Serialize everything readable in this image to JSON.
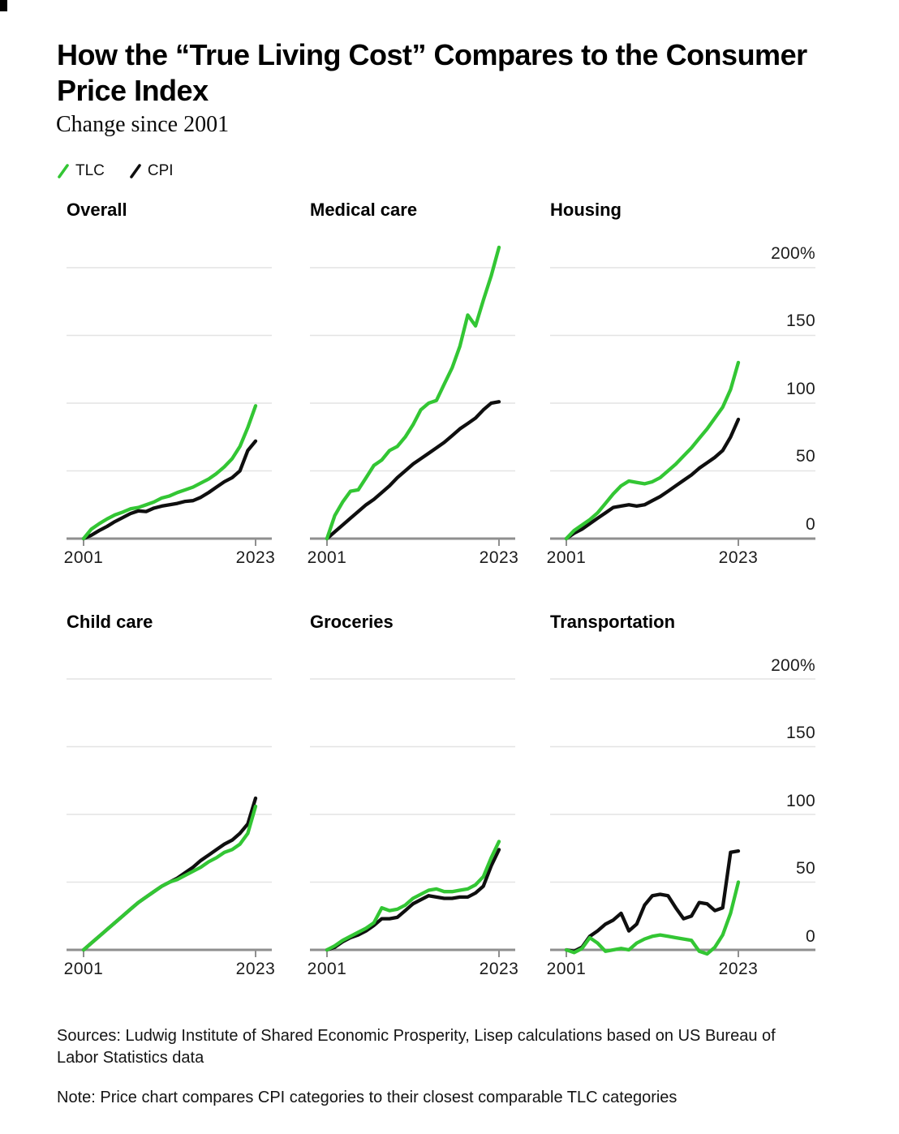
{
  "page": {
    "title": "How the “True Living Cost” Compares to the Consumer Price Index",
    "subtitle": "Change since 2001",
    "source_note": "Sources: Ludwig Institute of Shared Economic Prosperity, Lisep calculations based on US Bureau of Labor Statistics data",
    "footnote": "Note: Price chart compares CPI categories to their closest comparable TLC categories"
  },
  "legend": {
    "items": [
      {
        "label": "TLC",
        "color": "#33c634"
      },
      {
        "label": "CPI",
        "color": "#0f0f0f"
      }
    ]
  },
  "axis": {
    "y_tick_labels": [
      "200%",
      "150",
      "100",
      "50",
      "0"
    ],
    "y_gridline_values": [
      200,
      150,
      100,
      50,
      0
    ],
    "x_tick_labels": [
      "2001",
      "2023"
    ]
  },
  "colors": {
    "tlc": "#33c634",
    "cpi": "#0f0f0f",
    "gridline": "#e4e4e4",
    "axis_line": "#8f8f8f",
    "text": "#000000"
  },
  "chart_data": [
    {
      "type": "line",
      "title": "Overall",
      "x_tick_labels": [
        "2001",
        "2023"
      ],
      "ylim": [
        -5,
        215
      ],
      "x": [
        2001,
        2002,
        2003,
        2004,
        2005,
        2006,
        2007,
        2008,
        2009,
        2010,
        2011,
        2012,
        2013,
        2014,
        2015,
        2016,
        2017,
        2018,
        2019,
        2020,
        2021,
        2022,
        2023
      ],
      "series": [
        {
          "name": "TLC",
          "values": [
            0,
            7,
            11,
            14.5,
            17.5,
            19.5,
            22,
            23,
            25,
            27,
            30,
            31.5,
            34,
            36,
            38,
            41,
            44,
            48,
            53,
            59,
            68,
            82,
            98
          ]
        },
        {
          "name": "CPI",
          "values": [
            0,
            2.5,
            6,
            9,
            12.5,
            15.5,
            18.5,
            20.5,
            20,
            22.5,
            24,
            25,
            26,
            27.5,
            28,
            30.5,
            34,
            38,
            42,
            45,
            50,
            65,
            72
          ]
        }
      ]
    },
    {
      "type": "line",
      "title": "Medical care",
      "x_tick_labels": [
        "2001",
        "2023"
      ],
      "ylim": [
        -5,
        215
      ],
      "x": [
        2001,
        2002,
        2003,
        2004,
        2005,
        2006,
        2007,
        2008,
        2009,
        2010,
        2011,
        2012,
        2013,
        2014,
        2015,
        2016,
        2017,
        2018,
        2019,
        2020,
        2021,
        2022,
        2023
      ],
      "series": [
        {
          "name": "TLC",
          "values": [
            0,
            17,
            27,
            35,
            36,
            45,
            54,
            58,
            65,
            68,
            75,
            84,
            95,
            100,
            102,
            114,
            126,
            142,
            165,
            157,
            176,
            194,
            215
          ]
        },
        {
          "name": "CPI",
          "values": [
            0,
            5,
            10,
            15,
            20,
            25,
            29,
            34,
            39,
            45,
            50,
            55,
            59,
            63,
            67,
            71,
            76,
            81,
            85,
            89,
            95,
            100,
            101
          ]
        }
      ]
    },
    {
      "type": "line",
      "title": "Housing",
      "x_tick_labels": [
        "2001",
        "2023"
      ],
      "ylim": [
        -5,
        215
      ],
      "x": [
        2001,
        2002,
        2003,
        2004,
        2005,
        2006,
        2007,
        2008,
        2009,
        2010,
        2011,
        2012,
        2013,
        2014,
        2015,
        2016,
        2017,
        2018,
        2019,
        2020,
        2021,
        2022,
        2023
      ],
      "series": [
        {
          "name": "TLC",
          "values": [
            0,
            6,
            10,
            14,
            19,
            26,
            33,
            39,
            42.5,
            41.5,
            40.5,
            42,
            45,
            50,
            55,
            61,
            67,
            74,
            81,
            89,
            97,
            110,
            130
          ]
        },
        {
          "name": "CPI",
          "values": [
            0,
            4,
            7,
            11,
            15,
            19,
            23,
            24,
            25,
            24,
            25,
            28,
            31,
            35,
            39,
            43,
            47,
            52,
            56,
            60,
            65,
            75,
            88
          ]
        }
      ]
    },
    {
      "type": "line",
      "title": "Child care",
      "x_tick_labels": [
        "2001",
        "2023"
      ],
      "ylim": [
        -5,
        215
      ],
      "x": [
        2001,
        2002,
        2003,
        2004,
        2005,
        2006,
        2007,
        2008,
        2009,
        2010,
        2011,
        2012,
        2013,
        2014,
        2015,
        2016,
        2017,
        2018,
        2019,
        2020,
        2021,
        2022,
        2023
      ],
      "series": [
        {
          "name": "TLC",
          "values": [
            0,
            5,
            10,
            15,
            20,
            25,
            30,
            35,
            39,
            43,
            47,
            50,
            52,
            55,
            58,
            61,
            65,
            68,
            72,
            74,
            78,
            86,
            106
          ]
        },
        {
          "name": "CPI",
          "values": [
            0,
            5,
            10,
            15,
            20,
            25,
            30,
            35,
            39,
            43,
            47,
            50,
            53,
            57,
            61,
            66,
            70,
            74,
            78,
            81,
            86,
            93,
            112
          ]
        }
      ]
    },
    {
      "type": "line",
      "title": "Groceries",
      "x_tick_labels": [
        "2001",
        "2023"
      ],
      "ylim": [
        -5,
        215
      ],
      "x": [
        2001,
        2002,
        2003,
        2004,
        2005,
        2006,
        2007,
        2008,
        2009,
        2010,
        2011,
        2012,
        2013,
        2014,
        2015,
        2016,
        2017,
        2018,
        2019,
        2020,
        2021,
        2022,
        2023
      ],
      "series": [
        {
          "name": "TLC",
          "values": [
            0,
            3,
            7,
            10,
            13,
            16,
            20,
            31,
            29,
            30,
            33,
            38,
            41,
            44,
            45,
            43,
            43,
            44,
            45,
            48,
            54,
            68,
            80
          ]
        },
        {
          "name": "CPI",
          "values": [
            0,
            2,
            6,
            9,
            11,
            14,
            18,
            23,
            23,
            24,
            29,
            34,
            37,
            40,
            39,
            38,
            38,
            39,
            39,
            42,
            47,
            62,
            74
          ]
        }
      ]
    },
    {
      "type": "line",
      "title": "Transportation",
      "x_tick_labels": [
        "2001",
        "2023"
      ],
      "ylim": [
        -5,
        215
      ],
      "x": [
        2001,
        2002,
        2003,
        2004,
        2005,
        2006,
        2007,
        2008,
        2009,
        2010,
        2011,
        2012,
        2013,
        2014,
        2015,
        2016,
        2017,
        2018,
        2019,
        2020,
        2021,
        2022,
        2023
      ],
      "series": [
        {
          "name": "TLC",
          "values": [
            0,
            -2,
            1,
            9,
            5,
            -1,
            0,
            1,
            0,
            5,
            8,
            10,
            11,
            10,
            9,
            8,
            7,
            -1,
            -3,
            2,
            11,
            27,
            50
          ]
        },
        {
          "name": "CPI",
          "values": [
            0,
            -1,
            2,
            10,
            14,
            19,
            22,
            27,
            14,
            19,
            33,
            40,
            41,
            40,
            31,
            23,
            25,
            35,
            34,
            29,
            31,
            72,
            73
          ]
        }
      ]
    }
  ]
}
